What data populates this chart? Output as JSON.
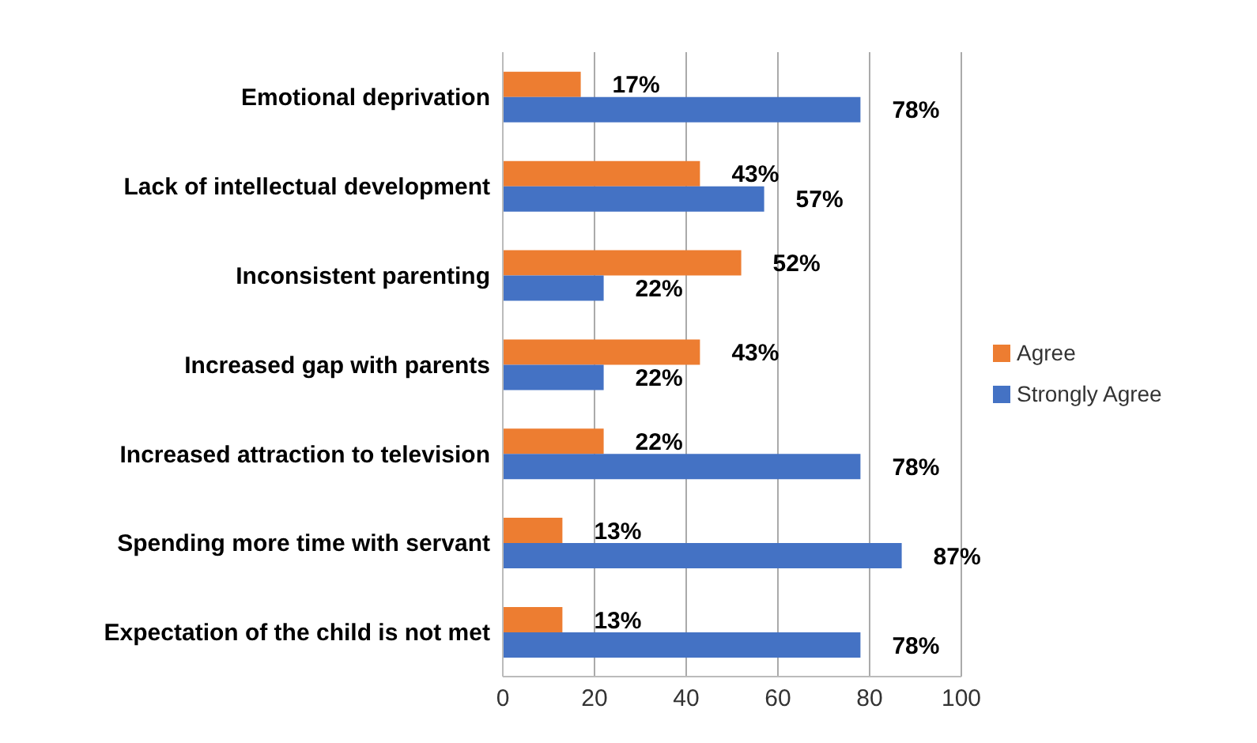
{
  "chart_data": {
    "type": "bar",
    "orientation": "horizontal",
    "categories": [
      "Emotional deprivation",
      "Lack of intellectual development",
      "Inconsistent parenting",
      "Increased gap with parents",
      "Increased attraction to television",
      "Spending more time with servant",
      "Expectation of the child is not met"
    ],
    "series": [
      {
        "name": "Agree",
        "color": "#ed7d31",
        "values": [
          17,
          43,
          52,
          43,
          22,
          13,
          13
        ],
        "value_labels": [
          "17%",
          "43%",
          "52%",
          "43%",
          "22%",
          "13%",
          "13%"
        ]
      },
      {
        "name": "Strongly Agree",
        "color": "#4472c4",
        "values": [
          78,
          57,
          22,
          22,
          78,
          87,
          78
        ],
        "value_labels": [
          "78%",
          "57%",
          "22%",
          "22%",
          "78%",
          "87%",
          "78%"
        ]
      }
    ],
    "xlim": [
      0,
      100
    ],
    "xticks": [
      0,
      20,
      40,
      60,
      80,
      100
    ],
    "grid": "x",
    "legend": "right"
  }
}
